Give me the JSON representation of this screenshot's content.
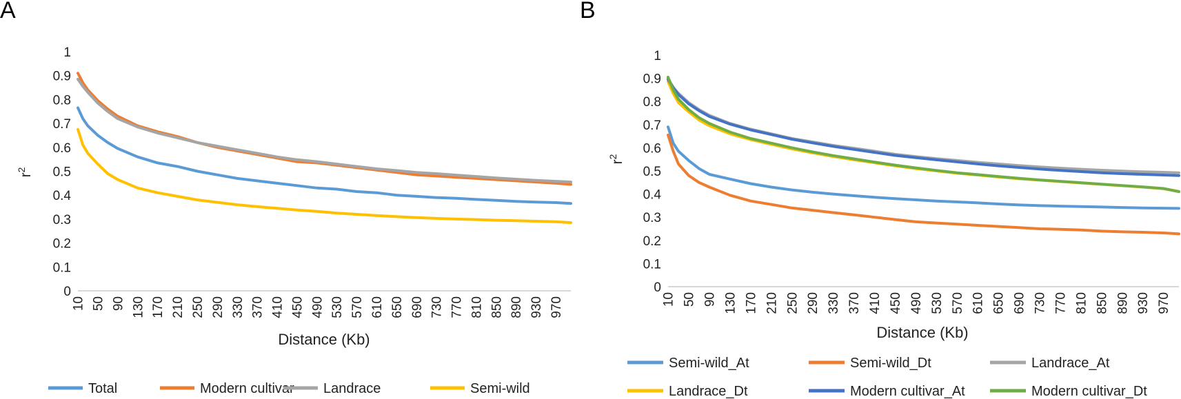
{
  "panels": [
    {
      "letter": "A",
      "chart_data": {
        "type": "line",
        "title": "",
        "xlabel": "Distance (Kb)",
        "ylabel": "r2",
        "ylabel_base": "r",
        "ylabel_sup": "2",
        "ylim": [
          0,
          1
        ],
        "yticks": [
          "0",
          "0.1",
          "0.2",
          "0.3",
          "0.4",
          "0.5",
          "0.6",
          "0.7",
          "0.8",
          "0.9",
          "1"
        ],
        "xlim": [
          10,
          1000
        ],
        "xticks": [
          "10",
          "50",
          "90",
          "130",
          "170",
          "210",
          "250",
          "290",
          "330",
          "370",
          "410",
          "450",
          "490",
          "530",
          "570",
          "610",
          "650",
          "690",
          "730",
          "770",
          "810",
          "850",
          "890",
          "930",
          "970"
        ],
        "series": [
          {
            "name": "Total",
            "color": "#5B9BD5",
            "x": [
              10,
              20,
              30,
              50,
              70,
              90,
              130,
              170,
              210,
              250,
              290,
              330,
              370,
              410,
              450,
              490,
              530,
              570,
              610,
              650,
              690,
              730,
              770,
              810,
              850,
              890,
              930,
              970,
              1000
            ],
            "y": [
              0.765,
              0.72,
              0.69,
              0.65,
              0.62,
              0.595,
              0.56,
              0.535,
              0.52,
              0.5,
              0.485,
              0.47,
              0.46,
              0.45,
              0.44,
              0.43,
              0.425,
              0.415,
              0.41,
              0.4,
              0.395,
              0.39,
              0.387,
              0.382,
              0.378,
              0.374,
              0.371,
              0.369,
              0.365
            ]
          },
          {
            "name": "Modern cultivar",
            "color": "#ED7D31",
            "x": [
              10,
              20,
              30,
              50,
              70,
              90,
              130,
              170,
              210,
              250,
              290,
              330,
              370,
              410,
              450,
              490,
              530,
              570,
              610,
              650,
              690,
              730,
              770,
              810,
              850,
              890,
              930,
              970,
              1000
            ],
            "y": [
              0.91,
              0.87,
              0.84,
              0.795,
              0.76,
              0.73,
              0.69,
              0.665,
              0.645,
              0.62,
              0.6,
              0.585,
              0.57,
              0.555,
              0.54,
              0.535,
              0.525,
              0.515,
              0.505,
              0.495,
              0.485,
              0.48,
              0.475,
              0.47,
              0.465,
              0.46,
              0.455,
              0.45,
              0.445
            ]
          },
          {
            "name": "Landrace",
            "color": "#A5A5A5",
            "x": [
              10,
              20,
              30,
              50,
              70,
              90,
              130,
              170,
              210,
              250,
              290,
              330,
              370,
              410,
              450,
              490,
              530,
              570,
              610,
              650,
              690,
              730,
              770,
              810,
              850,
              890,
              930,
              970,
              1000
            ],
            "y": [
              0.885,
              0.855,
              0.83,
              0.785,
              0.75,
              0.72,
              0.685,
              0.66,
              0.64,
              0.62,
              0.605,
              0.59,
              0.575,
              0.56,
              0.548,
              0.54,
              0.53,
              0.52,
              0.51,
              0.503,
              0.495,
              0.49,
              0.484,
              0.478,
              0.472,
              0.467,
              0.462,
              0.458,
              0.455
            ]
          },
          {
            "name": "Semi-wild",
            "color": "#FFC000",
            "x": [
              10,
              20,
              30,
              50,
              70,
              90,
              130,
              170,
              210,
              250,
              290,
              330,
              370,
              410,
              450,
              490,
              530,
              570,
              610,
              650,
              690,
              730,
              770,
              810,
              850,
              890,
              930,
              970,
              1000
            ],
            "y": [
              0.675,
              0.61,
              0.575,
              0.53,
              0.49,
              0.465,
              0.43,
              0.41,
              0.395,
              0.38,
              0.37,
              0.36,
              0.352,
              0.345,
              0.338,
              0.332,
              0.325,
              0.32,
              0.315,
              0.31,
              0.306,
              0.303,
              0.3,
              0.298,
              0.295,
              0.293,
              0.291,
              0.289,
              0.285
            ]
          }
        ],
        "legend_position": "bottom"
      }
    },
    {
      "letter": "B",
      "chart_data": {
        "type": "line",
        "title": "",
        "xlabel": "Distance (Kb)",
        "ylabel": "r2",
        "ylabel_base": "r",
        "ylabel_sup": "2",
        "ylim": [
          0,
          1
        ],
        "yticks": [
          "0",
          "0.1",
          "0.2",
          "0.3",
          "0.4",
          "0.5",
          "0.6",
          "0.7",
          "0.8",
          "0.9",
          "1"
        ],
        "xlim": [
          10,
          1000
        ],
        "xticks": [
          "10",
          "50",
          "90",
          "130",
          "170",
          "210",
          "250",
          "290",
          "330",
          "370",
          "410",
          "450",
          "490",
          "530",
          "570",
          "610",
          "650",
          "690",
          "730",
          "770",
          "810",
          "850",
          "890",
          "930",
          "970"
        ],
        "series": [
          {
            "name": "Semi-wild_At",
            "color": "#5B9BD5",
            "x": [
              10,
              20,
              30,
              50,
              70,
              90,
              130,
              170,
              210,
              250,
              290,
              330,
              370,
              410,
              450,
              490,
              530,
              570,
              610,
              650,
              690,
              730,
              770,
              810,
              850,
              890,
              930,
              970,
              1000
            ],
            "y": [
              0.69,
              0.62,
              0.585,
              0.545,
              0.51,
              0.485,
              0.465,
              0.445,
              0.43,
              0.418,
              0.408,
              0.4,
              0.393,
              0.386,
              0.38,
              0.375,
              0.37,
              0.366,
              0.362,
              0.357,
              0.353,
              0.35,
              0.348,
              0.346,
              0.344,
              0.342,
              0.34,
              0.339,
              0.338
            ]
          },
          {
            "name": "Semi-wild_Dt",
            "color": "#ED7D31",
            "x": [
              10,
              20,
              30,
              50,
              70,
              90,
              130,
              170,
              210,
              250,
              290,
              330,
              370,
              410,
              450,
              490,
              530,
              570,
              610,
              650,
              690,
              730,
              770,
              810,
              850,
              890,
              930,
              970,
              1000
            ],
            "y": [
              0.655,
              0.585,
              0.53,
              0.48,
              0.45,
              0.43,
              0.395,
              0.37,
              0.355,
              0.34,
              0.33,
              0.32,
              0.31,
              0.3,
              0.29,
              0.28,
              0.275,
              0.27,
              0.265,
              0.26,
              0.255,
              0.25,
              0.248,
              0.245,
              0.24,
              0.237,
              0.235,
              0.232,
              0.228
            ]
          },
          {
            "name": "Landrace_At",
            "color": "#A5A5A5",
            "x": [
              10,
              20,
              30,
              50,
              70,
              90,
              130,
              170,
              210,
              250,
              290,
              330,
              370,
              410,
              450,
              490,
              530,
              570,
              610,
              650,
              690,
              730,
              770,
              810,
              850,
              890,
              930,
              970,
              1000
            ],
            "y": [
              0.9,
              0.86,
              0.835,
              0.795,
              0.765,
              0.74,
              0.705,
              0.68,
              0.66,
              0.64,
              0.625,
              0.61,
              0.598,
              0.585,
              0.572,
              0.562,
              0.553,
              0.545,
              0.537,
              0.53,
              0.523,
              0.517,
              0.512,
              0.507,
              0.503,
              0.499,
              0.496,
              0.494,
              0.492
            ]
          },
          {
            "name": "Landrace_Dt",
            "color": "#FFC000",
            "x": [
              10,
              20,
              30,
              50,
              70,
              90,
              130,
              170,
              210,
              250,
              290,
              330,
              370,
              410,
              450,
              490,
              530,
              570,
              610,
              650,
              690,
              730,
              770,
              810,
              850,
              890,
              930,
              970,
              1000
            ],
            "y": [
              0.885,
              0.835,
              0.795,
              0.755,
              0.72,
              0.695,
              0.66,
              0.635,
              0.615,
              0.595,
              0.578,
              0.562,
              0.548,
              0.535,
              0.522,
              0.51,
              0.5,
              0.49,
              0.482,
              0.474,
              0.466,
              0.46,
              0.454,
              0.448,
              0.442,
              0.436,
              0.43,
              0.423,
              0.412
            ]
          },
          {
            "name": "Modern cultivar_At",
            "color": "#4472C4",
            "x": [
              10,
              20,
              30,
              50,
              70,
              90,
              130,
              170,
              210,
              250,
              290,
              330,
              370,
              410,
              450,
              490,
              530,
              570,
              610,
              650,
              690,
              730,
              770,
              810,
              850,
              890,
              930,
              970,
              1000
            ],
            "y": [
              0.895,
              0.86,
              0.83,
              0.79,
              0.76,
              0.735,
              0.702,
              0.677,
              0.657,
              0.637,
              0.621,
              0.606,
              0.593,
              0.58,
              0.567,
              0.557,
              0.548,
              0.539,
              0.53,
              0.522,
              0.515,
              0.508,
              0.502,
              0.497,
              0.492,
              0.488,
              0.485,
              0.482,
              0.48
            ]
          },
          {
            "name": "Modern cultivar_Dt",
            "color": "#70AD47",
            "x": [
              10,
              20,
              30,
              50,
              70,
              90,
              130,
              170,
              210,
              250,
              290,
              330,
              370,
              410,
              450,
              490,
              530,
              570,
              610,
              650,
              690,
              730,
              770,
              810,
              850,
              890,
              930,
              970,
              1000
            ],
            "y": [
              0.905,
              0.85,
              0.81,
              0.765,
              0.73,
              0.705,
              0.668,
              0.64,
              0.62,
              0.6,
              0.582,
              0.566,
              0.552,
              0.538,
              0.525,
              0.513,
              0.502,
              0.492,
              0.484,
              0.476,
              0.468,
              0.461,
              0.455,
              0.449,
              0.443,
              0.437,
              0.431,
              0.424,
              0.41
            ]
          }
        ],
        "legend_position": "bottom"
      }
    }
  ]
}
